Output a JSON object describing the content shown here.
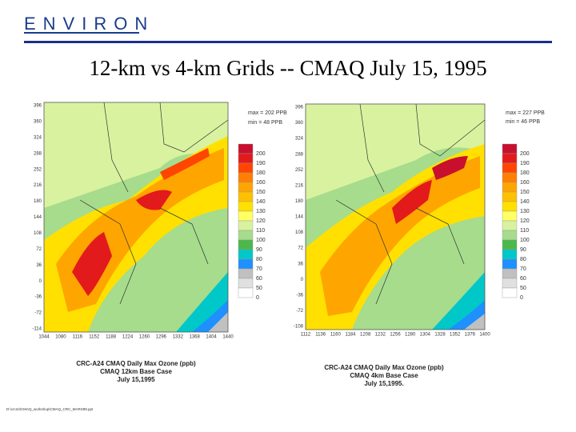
{
  "logo": "ENVIRON",
  "title": "12-km vs 4-km Grids -- CMAQ July 15, 1995",
  "left_panel": {
    "max_label": "max = 202 PPB",
    "min_label": "min = 48 PPB",
    "yticks": [
      396,
      360,
      324,
      288,
      252,
      216,
      180,
      144,
      108,
      72,
      36,
      0,
      -36,
      -72,
      -114
    ],
    "xticks": [
      1044,
      1080,
      1116,
      1152,
      1188,
      1224,
      1260,
      1296,
      1332,
      1368,
      1404,
      1440
    ],
    "legend": [
      {
        "label": "200",
        "color": "#c8102e"
      },
      {
        "label": "190",
        "color": "#e31a1c"
      },
      {
        "label": "180",
        "color": "#ff4500"
      },
      {
        "label": "160",
        "color": "#ff7f00"
      },
      {
        "label": "150",
        "color": "#ffa500"
      },
      {
        "label": "140",
        "color": "#ffc000"
      },
      {
        "label": "130",
        "color": "#ffe000"
      },
      {
        "label": "120",
        "color": "#ffff66"
      },
      {
        "label": "110",
        "color": "#d9f2a0"
      },
      {
        "label": "100",
        "color": "#a6dc8c"
      },
      {
        "label": "90",
        "color": "#4cb84c"
      },
      {
        "label": "80",
        "color": "#00c8c8"
      },
      {
        "label": "70",
        "color": "#1e90ff"
      },
      {
        "label": "60",
        "color": "#c0c0c0"
      },
      {
        "label": "50",
        "color": "#e0e0e0"
      },
      {
        "label": "0",
        "color": "#ffffff"
      }
    ],
    "caption": [
      "CRC-A24 CMAQ Daily Max Ozone (ppb)",
      "CMAQ 12km Base Case",
      "July 15,1995"
    ]
  },
  "right_panel": {
    "max_label": "max = 227 PPB",
    "min_label": "min = 46 PPB",
    "yticks": [
      396,
      360,
      324,
      288,
      252,
      216,
      180,
      144,
      108,
      72,
      36,
      0,
      -36,
      -72,
      -108
    ],
    "xticks": [
      1112,
      1136,
      1160,
      1184,
      1208,
      1232,
      1256,
      1280,
      1304,
      1328,
      1352,
      1376,
      1400
    ],
    "legend": [
      {
        "label": "200",
        "color": "#c8102e"
      },
      {
        "label": "190",
        "color": "#e31a1c"
      },
      {
        "label": "180",
        "color": "#ff4500"
      },
      {
        "label": "160",
        "color": "#ff7f00"
      },
      {
        "label": "150",
        "color": "#ffa500"
      },
      {
        "label": "140",
        "color": "#ffc000"
      },
      {
        "label": "130",
        "color": "#ffe000"
      },
      {
        "label": "120",
        "color": "#ffff66"
      },
      {
        "label": "110",
        "color": "#d9f2a0"
      },
      {
        "label": "100",
        "color": "#a6dc8c"
      },
      {
        "label": "90",
        "color": "#4cb84c"
      },
      {
        "label": "80",
        "color": "#00c8c8"
      },
      {
        "label": "70",
        "color": "#1e90ff"
      },
      {
        "label": "60",
        "color": "#c0c0c0"
      },
      {
        "label": "50",
        "color": "#e0e0e0"
      },
      {
        "label": "0",
        "color": "#ffffff"
      }
    ],
    "caption": [
      "CRC-A24 CMAQ Daily Max Ozone (ppb)",
      "CMAQ 4km Base Case",
      "July 15,1995."
    ]
  },
  "footer": "D:\\crc24\\CMAQ_workshop\\CMAQ_CRC_MARS99.ppt"
}
